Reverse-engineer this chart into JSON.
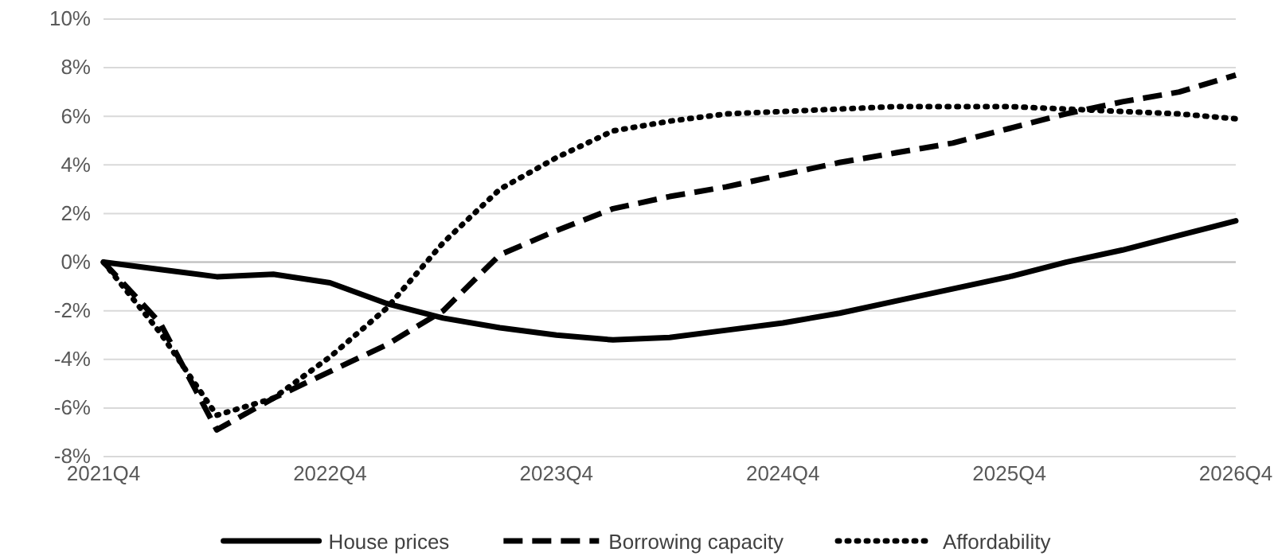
{
  "chart_data": {
    "type": "line",
    "categories": [
      "2021Q4",
      null,
      null,
      null,
      "2022Q4",
      null,
      null,
      null,
      "2023Q4",
      null,
      null,
      null,
      "2024Q4",
      null,
      null,
      null,
      "2025Q4",
      null,
      null,
      null,
      "2026Q4"
    ],
    "series": [
      {
        "name": "House prices",
        "color": "#000000",
        "line_style": "solid",
        "values": [
          0,
          -0.3,
          -0.6,
          -0.5,
          -0.85,
          -1.7,
          -2.3,
          -2.7,
          -3.0,
          -3.2,
          -3.1,
          -2.8,
          -2.5,
          -2.1,
          -1.6,
          -1.1,
          -0.6,
          0,
          0.5,
          1.1,
          1.7
        ]
      },
      {
        "name": "Borrowing capacity",
        "color": "#000000",
        "line_style": "dashed",
        "values": [
          0,
          -2.5,
          -6.9,
          -5.6,
          -4.5,
          -3.4,
          -2.0,
          0.3,
          1.3,
          2.2,
          2.7,
          3.1,
          3.6,
          4.1,
          4.5,
          4.9,
          5.5,
          6.1,
          6.6,
          7.0,
          7.7
        ]
      },
      {
        "name": "Affordability",
        "color": "#000000",
        "line_style": "dotted",
        "values": [
          0,
          -2.9,
          -6.3,
          -5.6,
          -3.9,
          -1.9,
          0.8,
          3.0,
          4.3,
          5.4,
          5.8,
          6.1,
          6.2,
          6.3,
          6.4,
          6.4,
          6.4,
          6.3,
          6.2,
          6.1,
          5.9
        ]
      }
    ],
    "ylim": [
      -8,
      10
    ],
    "yticks": [
      {
        "value": -8,
        "label": "-8%"
      },
      {
        "value": -6,
        "label": "-6%"
      },
      {
        "value": -4,
        "label": "-4%"
      },
      {
        "value": -2,
        "label": "-2%"
      },
      {
        "value": 0,
        "label": "0%"
      },
      {
        "value": 2,
        "label": "2%"
      },
      {
        "value": 4,
        "label": "4%"
      },
      {
        "value": 6,
        "label": "6%"
      },
      {
        "value": 8,
        "label": "8%"
      },
      {
        "value": 10,
        "label": "10%"
      }
    ],
    "grid": "y",
    "legend": "bottom",
    "marker": "none"
  }
}
